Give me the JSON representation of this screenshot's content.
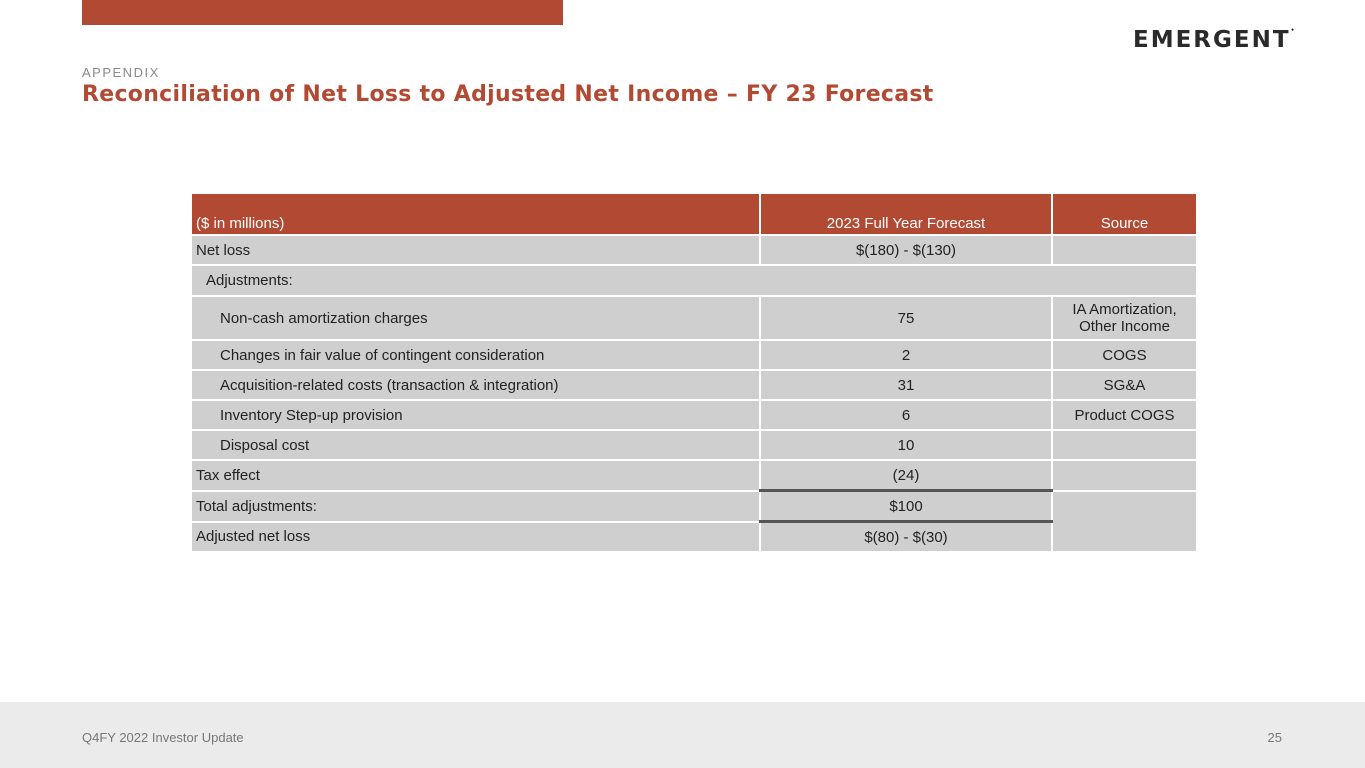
{
  "logo": "EMERGENT",
  "kicker": "APPENDIX",
  "title": "Reconciliation of Net Loss to Adjusted Net Income – FY 23 Forecast",
  "table": {
    "headers": [
      "($ in millions)",
      "2023 Full Year Forecast",
      "Source"
    ],
    "rows": [
      {
        "label": "Net loss",
        "value": "$(180) - $(130)",
        "source": ""
      },
      {
        "label": "Adjustments:"
      },
      {
        "label": "Non-cash amortization charges",
        "value": "75",
        "source": "IA Amortization, Other Income"
      },
      {
        "label": "Changes in fair value of contingent consideration",
        "value": "2",
        "source": "COGS"
      },
      {
        "label": "Acquisition-related costs (transaction & integration)",
        "value": "31",
        "source": "SG&A"
      },
      {
        "label": "Inventory Step-up provision",
        "value": "6",
        "source": "Product COGS"
      },
      {
        "label": "Disposal cost",
        "value": "10",
        "source": ""
      },
      {
        "label": "Tax effect",
        "value": "(24)",
        "source": ""
      },
      {
        "label": "Total adjustments:",
        "value": "$100"
      },
      {
        "label": "Adjusted net loss",
        "value": "$(80) - $(30)"
      }
    ]
  },
  "footer": {
    "left": "Q4FY 2022 Investor Update",
    "page": "25"
  }
}
